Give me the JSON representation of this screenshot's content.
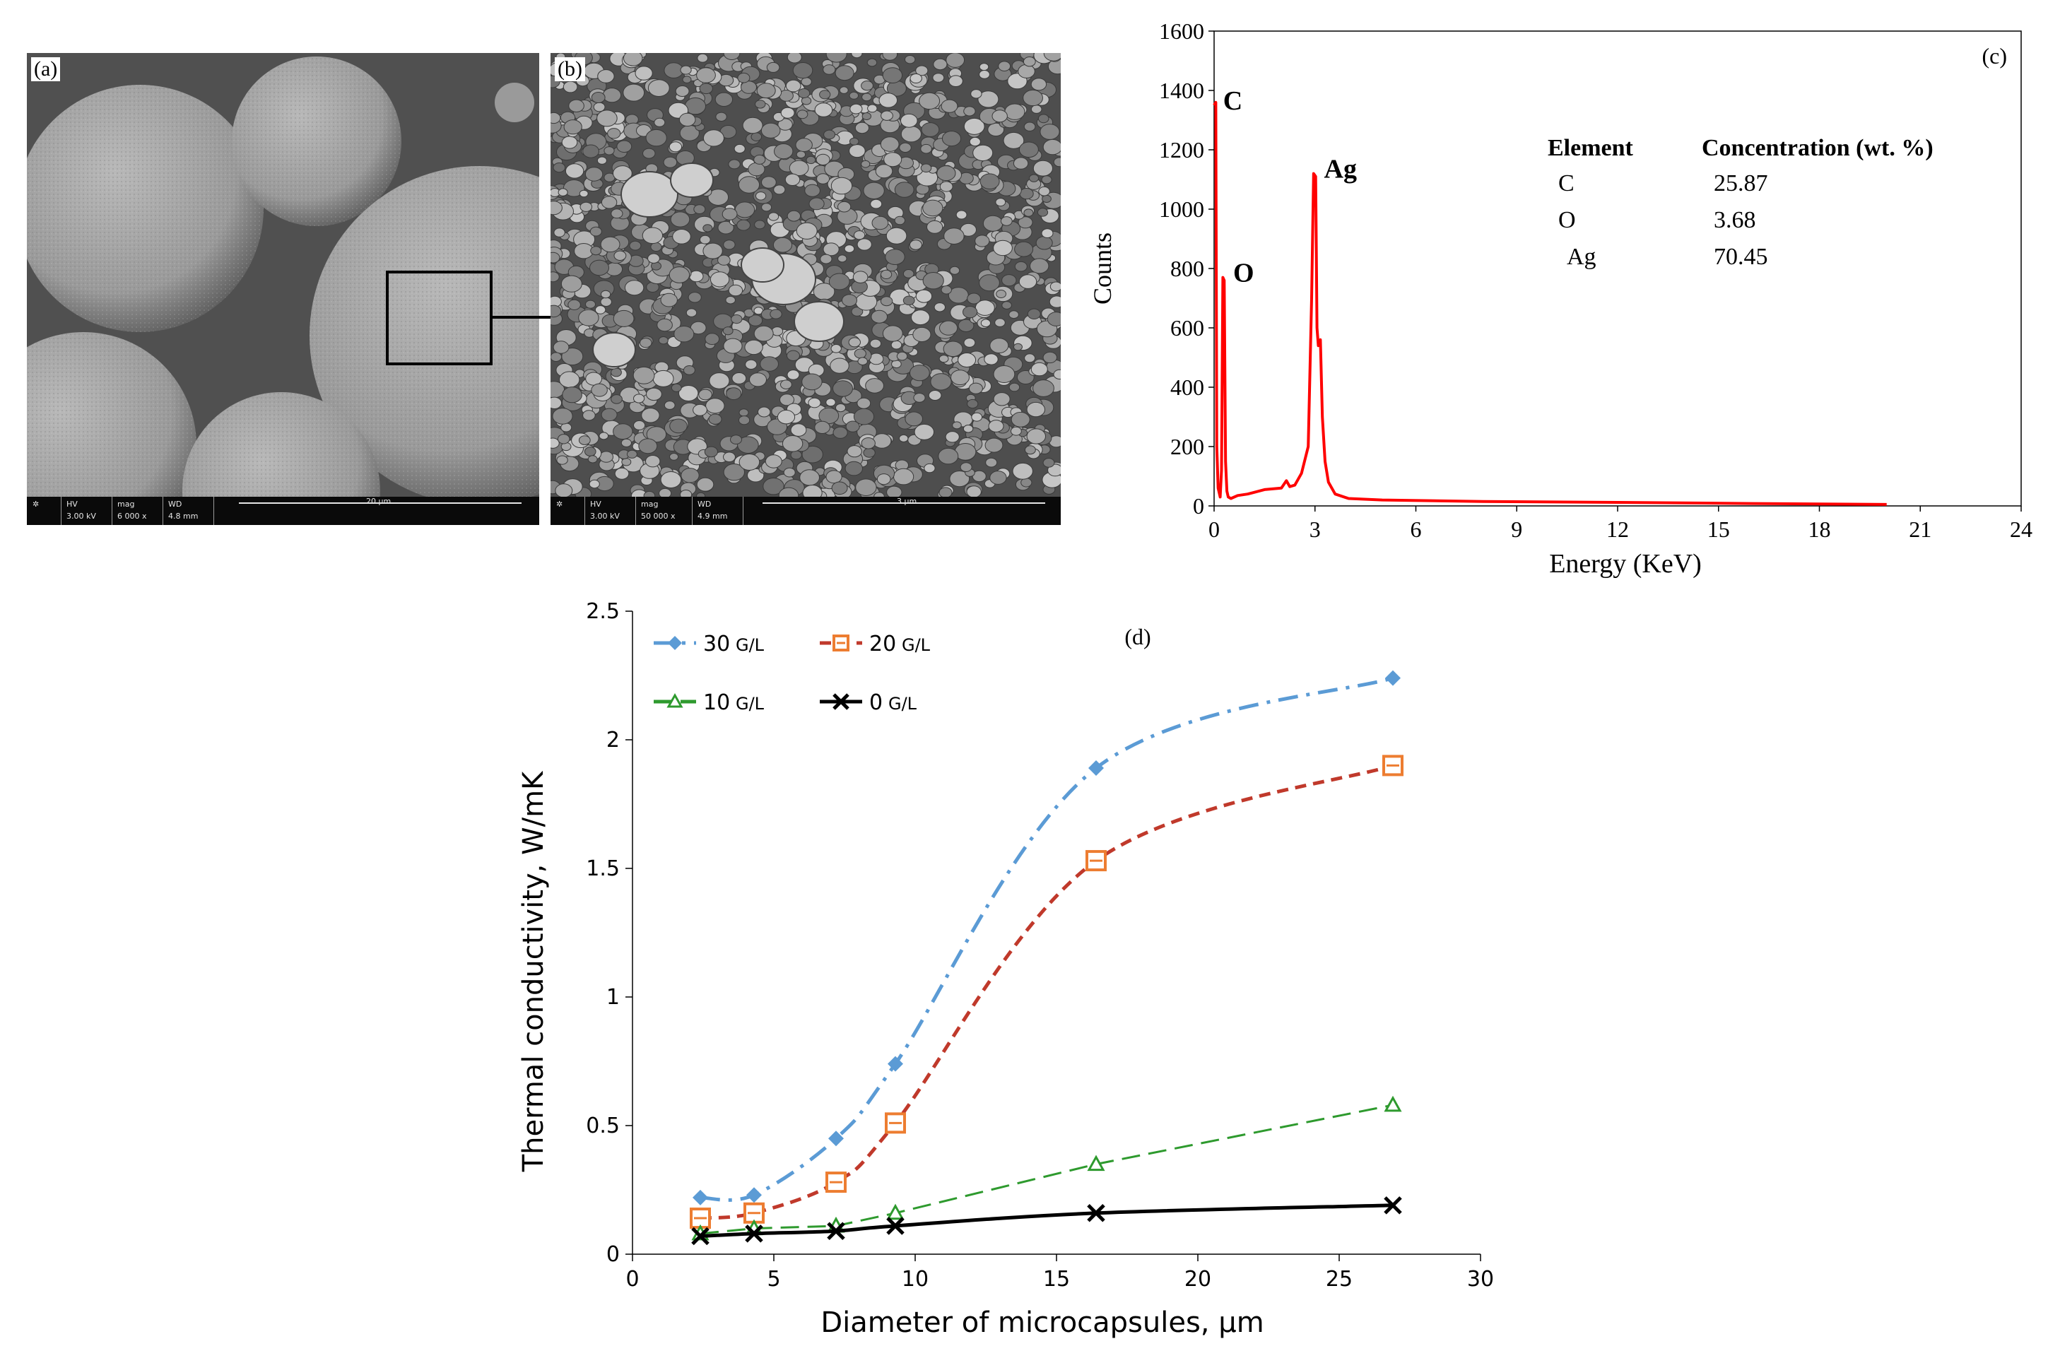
{
  "sem_a": {
    "label": "(a)",
    "info": {
      "hv_key": "HV",
      "hv": "3.00 kV",
      "mag_key": "mag",
      "mag": "6 000 x",
      "wd_key": "WD",
      "wd": "4.8 mm",
      "scale": "20 µm"
    }
  },
  "sem_b": {
    "label": "(b)",
    "info": {
      "hv_key": "HV",
      "hv": "3.00 kV",
      "mag_key": "mag",
      "mag": "50 000 x",
      "wd_key": "WD",
      "wd": "4.9 mm",
      "scale": "3 µm"
    }
  },
  "chart_data": [
    {
      "id": "c",
      "type": "line",
      "panel_label": "(c)",
      "xlabel": "Energy  (KeV)",
      "ylabel": "Counts",
      "xlim": [
        0,
        24
      ],
      "ylim": [
        0,
        1600
      ],
      "xticks": [
        0,
        3,
        6,
        9,
        12,
        15,
        18,
        21,
        24
      ],
      "yticks": [
        0,
        200,
        400,
        600,
        800,
        1000,
        1200,
        1400,
        1600
      ],
      "color": "#ff0000",
      "series": [
        {
          "x": [
            0,
            0.05,
            0.08,
            0.12,
            0.18,
            0.22,
            0.26,
            0.3,
            0.34,
            0.38,
            0.42,
            0.5,
            0.7,
            1.0,
            1.5,
            2.0,
            2.15,
            2.25,
            2.4,
            2.6,
            2.8,
            2.9,
            2.96,
            3.02,
            3.06,
            3.1,
            3.16,
            3.22,
            3.3,
            3.4,
            3.6,
            4.0,
            5.0,
            8.0,
            12.0,
            16.0,
            20.0
          ],
          "y": [
            1350,
            1360,
            200,
            60,
            30,
            120,
            770,
            760,
            150,
            50,
            30,
            25,
            35,
            40,
            55,
            60,
            85,
            65,
            70,
            110,
            200,
            700,
            1120,
            1110,
            600,
            540,
            560,
            300,
            150,
            80,
            40,
            25,
            20,
            15,
            12,
            8,
            5
          ]
        }
      ],
      "annotations": [
        {
          "text": "C",
          "x": 0.1,
          "y": 1360
        },
        {
          "text": "O",
          "x": 0.4,
          "y": 780
        },
        {
          "text": "Ag",
          "x": 3.1,
          "y": 1130
        }
      ],
      "table": {
        "headers": [
          "Element",
          "Concentration (wt. %)"
        ],
        "rows": [
          [
            "C",
            "25.87"
          ],
          [
            "O",
            "3.68"
          ],
          [
            "Ag",
            "70.45"
          ]
        ]
      }
    },
    {
      "id": "d",
      "type": "line",
      "panel_label": "(d)",
      "xlabel": "Diameter of microcapsules, µm",
      "ylabel": "Thermal conductivity, W/mK",
      "xlim": [
        0,
        30
      ],
      "ylim": [
        0,
        2.5
      ],
      "xticks": [
        0,
        5,
        10,
        15,
        20,
        25,
        30
      ],
      "yticks": [
        0,
        0.5,
        1,
        1.5,
        2,
        2.5
      ],
      "ytick_labels": [
        "0",
        "0.5",
        "1",
        "1.5",
        "2",
        "2.5"
      ],
      "legend": "top-left",
      "series": [
        {
          "name": "30",
          "unit": "G/L",
          "color": "#5b9bd5",
          "marker": "diamond",
          "dash": "dashdot",
          "x": [
            2.4,
            4.3,
            7.2,
            9.3,
            16.4,
            26.9
          ],
          "y": [
            0.22,
            0.23,
            0.45,
            0.74,
            1.89,
            2.24
          ]
        },
        {
          "name": "20",
          "unit": "G/L",
          "color": "#c0392b",
          "marker_color": "#ed7d31",
          "marker": "square",
          "dash": "dashed",
          "x": [
            2.4,
            4.3,
            7.2,
            9.3,
            16.4,
            26.9
          ],
          "y": [
            0.14,
            0.16,
            0.28,
            0.51,
            1.53,
            1.9
          ]
        },
        {
          "name": "10",
          "unit": "G/L",
          "color": "#2e9a2e",
          "marker": "triangle",
          "dash": "longdash",
          "x": [
            2.4,
            4.3,
            7.2,
            9.3,
            16.4,
            26.9
          ],
          "y": [
            0.08,
            0.1,
            0.11,
            0.16,
            0.35,
            0.58
          ]
        },
        {
          "name": "0",
          "unit": "G/L",
          "color": "#000000",
          "marker": "x",
          "dash": "solid",
          "x": [
            2.4,
            4.3,
            7.2,
            9.3,
            16.4,
            26.9
          ],
          "y": [
            0.07,
            0.08,
            0.09,
            0.11,
            0.16,
            0.19
          ]
        }
      ]
    }
  ]
}
